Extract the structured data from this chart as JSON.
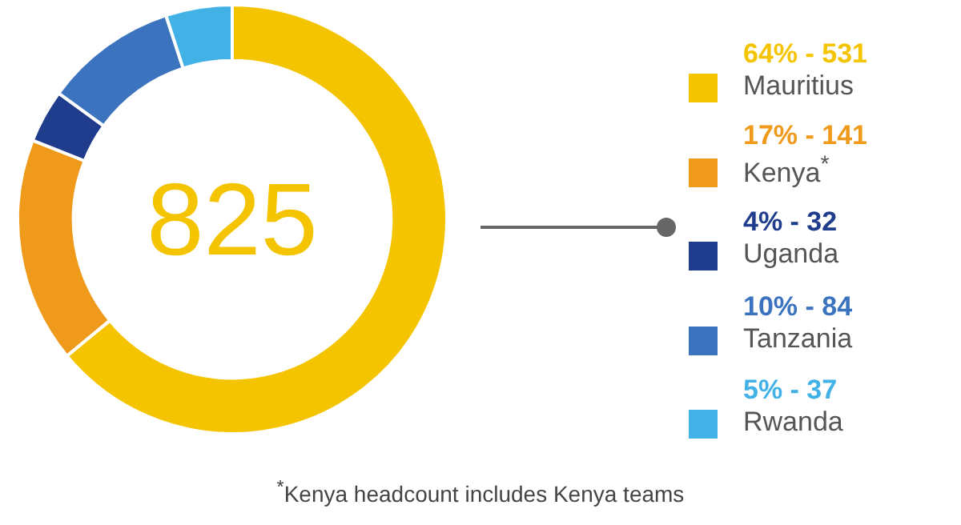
{
  "chart_data": {
    "type": "donut",
    "categories": [
      "Mauritius",
      "Kenya$^{*}$",
      "Uganda",
      "Tanzania",
      "Rwanda"
    ],
    "values": [
      64,
      17,
      4,
      10,
      5
    ],
    "colors": [
      "#f5c400",
      "#ef9a1a",
      "#1f3d8c",
      "#3b73bf",
      "#42b2e6"
    ],
    "value_labels": [
      "64% - 531",
      "17% - 141",
      "4% - 32",
      "10% - 84",
      "5% - 37"
    ],
    "legend": "right",
    "annotations": [
      "825",
      "$^{*}$Kenya headcount includes Kenya teams"
    ]
  }
}
